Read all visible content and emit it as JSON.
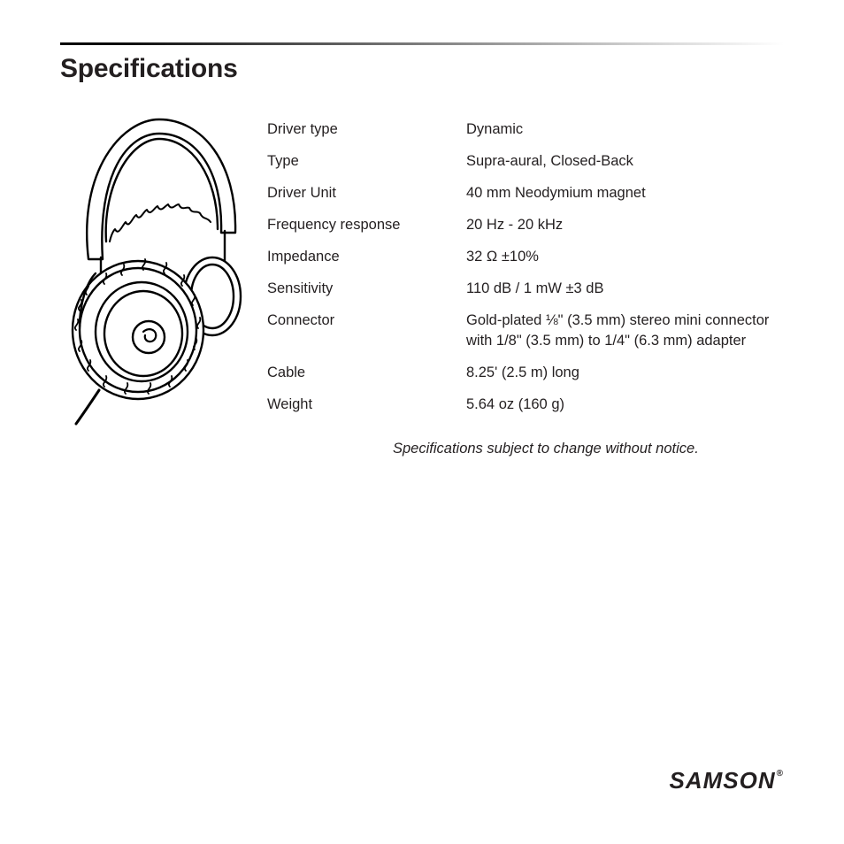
{
  "title": "Specifications",
  "specs": [
    {
      "label": "Driver type",
      "value": "Dynamic"
    },
    {
      "label": "Type",
      "value": "Supra-aural, Closed-Back"
    },
    {
      "label": "Driver Unit",
      "value": "40 mm Neodymium magnet"
    },
    {
      "label": "Frequency response",
      "value": "20 Hz - 20 kHz"
    },
    {
      "label": "Impedance",
      "value": "32 Ω ±10%"
    },
    {
      "label": "Sensitivity",
      "value": "110 dB / 1 mW ±3 dB"
    },
    {
      "label": "Connector",
      "value": "Gold-plated ⅛\" (3.5 mm) stereo mini connector with 1/8\" (3.5 mm) to 1/4\" (6.3 mm) adapter"
    },
    {
      "label": "Cable",
      "value": "8.25' (2.5 m) long"
    },
    {
      "label": "Weight",
      "value": "5.64 oz (160 g)"
    }
  ],
  "footnote": "Specifications subject to change without notice.",
  "brand": "SAMSON",
  "colors": {
    "text": "#231f20",
    "background": "#ffffff",
    "rule_dark": "#000000",
    "rule_light": "#d0d0d0"
  },
  "typography": {
    "title_size_pt": 22,
    "body_size_pt": 12,
    "brand_size_pt": 19
  },
  "illustration": {
    "type": "line-drawing",
    "subject": "headphones",
    "stroke": "#000000",
    "stroke_width": 2.2,
    "fill": "#ffffff"
  }
}
